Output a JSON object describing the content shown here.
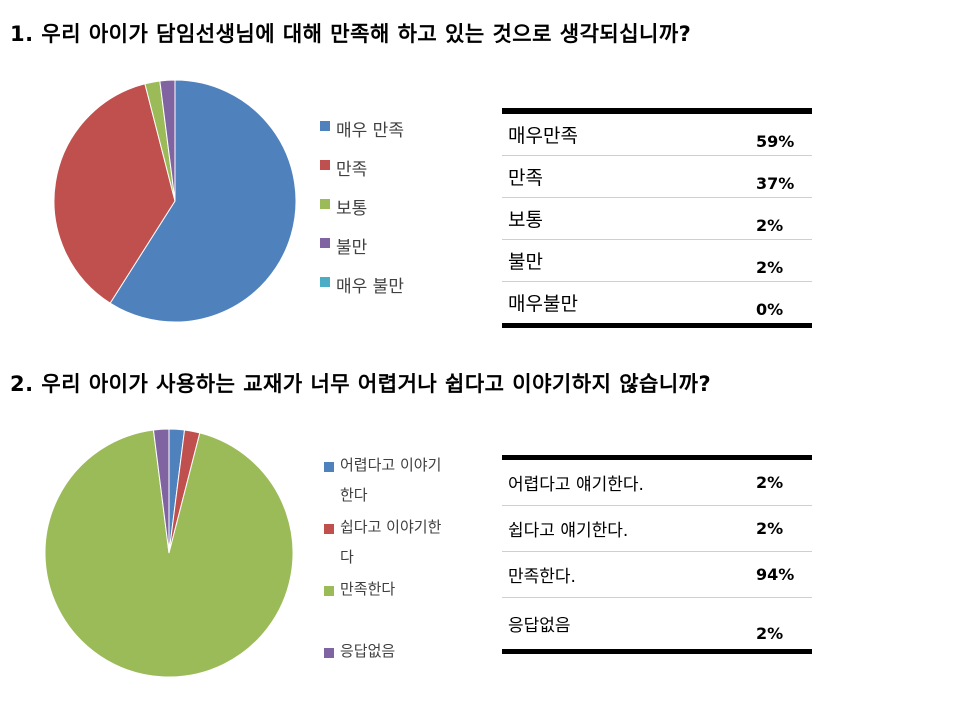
{
  "chart_data": [
    {
      "type": "pie",
      "title": "1. 우리 아이가 담임선생님에 대해 만족해 하고 있는 것으로 생각되십니까?",
      "categories": [
        "매우 만족",
        "만족",
        "보통",
        "불만",
        "매우 불만"
      ],
      "values": [
        59,
        37,
        2,
        2,
        0
      ],
      "colors": [
        "#4F81BD",
        "#C0504D",
        "#9BBB59",
        "#8064A2",
        "#4BACC6"
      ],
      "legend": "right",
      "table": {
        "rows": [
          {
            "label": "매우만족",
            "value": "59%"
          },
          {
            "label": "만족",
            "value": "37%"
          },
          {
            "label": "보통",
            "value": "2%"
          },
          {
            "label": "불만",
            "value": "2%"
          },
          {
            "label": "매우불만",
            "value": "0%"
          }
        ]
      }
    },
    {
      "type": "pie",
      "title": "2. 우리 아이가 사용하는 교재가 너무 어렵거나 쉽다고 이야기하지 않습니까?",
      "categories": [
        "어렵다고 이야기한다",
        "쉽다고 이야기한다",
        "만족한다",
        "응답없음"
      ],
      "values": [
        2,
        2,
        94,
        2
      ],
      "colors": [
        "#4F81BD",
        "#C0504D",
        "#9BBB59",
        "#8064A2"
      ],
      "legend": "right",
      "table": {
        "rows": [
          {
            "label": "어렵다고 얘기한다.",
            "value": "2%"
          },
          {
            "label": "쉽다고 얘기한다.",
            "value": "2%"
          },
          {
            "label": "만족한다.",
            "value": "94%"
          },
          {
            "label": "응답없음",
            "value": "2%"
          }
        ]
      }
    }
  ]
}
